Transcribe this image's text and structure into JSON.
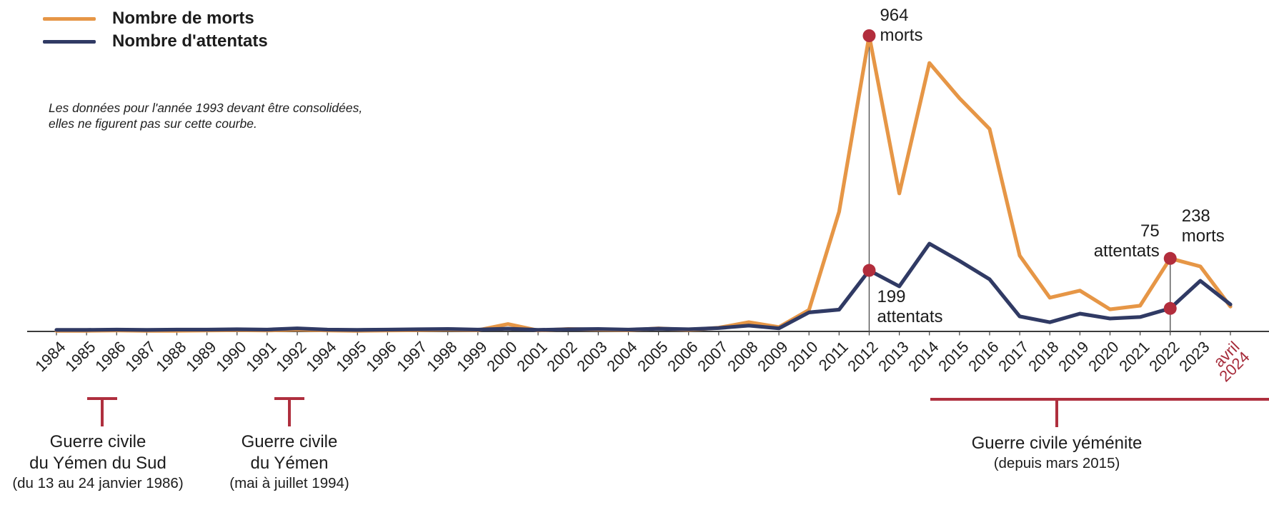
{
  "legend": {
    "items": [
      {
        "label": "Nombre de morts",
        "color": "#E69646"
      },
      {
        "label": "Nombre d'attentats",
        "color": "#303A64"
      }
    ]
  },
  "note": "Les données pour l'année 1993 devant être consolidées, elles ne figurent pas sur cette courbe.",
  "chart_data": {
    "type": "line",
    "categories": [
      "1984",
      "1985",
      "1986",
      "1987",
      "1988",
      "1989",
      "1990",
      "1991",
      "1992",
      "1994",
      "1995",
      "1996",
      "1997",
      "1998",
      "1999",
      "2000",
      "2001",
      "2002",
      "2003",
      "2004",
      "2005",
      "2006",
      "2007",
      "2008",
      "2009",
      "2010",
      "2011",
      "2012",
      "2013",
      "2014",
      "2015",
      "2016",
      "2017",
      "2018",
      "2019",
      "2020",
      "2021",
      "2022",
      "2023",
      "avril 2024"
    ],
    "series": [
      {
        "name": "Nombre de morts",
        "color": "#E69646",
        "values": [
          2,
          2,
          3,
          2,
          2,
          3,
          4,
          3,
          6,
          3,
          2,
          3,
          4,
          6,
          4,
          24,
          3,
          8,
          6,
          4,
          10,
          5,
          12,
          30,
          14,
          70,
          390,
          964,
          450,
          875,
          760,
          660,
          247,
          110,
          133,
          72,
          84,
          238,
          212,
          81
        ]
      },
      {
        "name": "Nombre d'attentats",
        "color": "#303A64",
        "values": [
          5,
          5,
          6,
          5,
          6,
          6,
          7,
          6,
          10,
          6,
          5,
          6,
          7,
          8,
          6,
          9,
          5,
          7,
          8,
          6,
          9,
          7,
          11,
          19,
          10,
          62,
          71,
          199,
          147,
          286,
          230,
          170,
          49,
          30,
          58,
          42,
          47,
          75,
          165,
          88
        ]
      }
    ],
    "ylim": [
      0,
      990
    ],
    "grid": false,
    "legend_position": "top-left",
    "x_axis": {
      "skipped_year": "1993",
      "last_label": "avril 2024",
      "last_label_color": "#A62B3A"
    },
    "markers": [
      {
        "year": "2012",
        "series": "Nombre de morts",
        "value": "964",
        "unit": "morts"
      },
      {
        "year": "2012",
        "series": "Nombre d'attentats",
        "value": "199",
        "unit": "attentats"
      },
      {
        "year": "2022",
        "series": "Nombre de morts",
        "value": "238",
        "unit": "morts"
      },
      {
        "year": "2022",
        "series": "Nombre d'attentats",
        "value": "75",
        "unit": "attentats"
      }
    ],
    "dot_color": "#B22D3C"
  },
  "events": [
    {
      "line1": "Guerre civile",
      "line2": "du Yémen du Sud",
      "subtitle": "(du 13 au 24 janvier 1986)"
    },
    {
      "line1": "Guerre civile",
      "line2": "du Yémen",
      "subtitle": "(mai à juillet 1994)"
    },
    {
      "line1": "Guerre civile yéménite",
      "subtitle": "(depuis mars 2015)"
    }
  ],
  "annotation_color": "#AF2F3E"
}
